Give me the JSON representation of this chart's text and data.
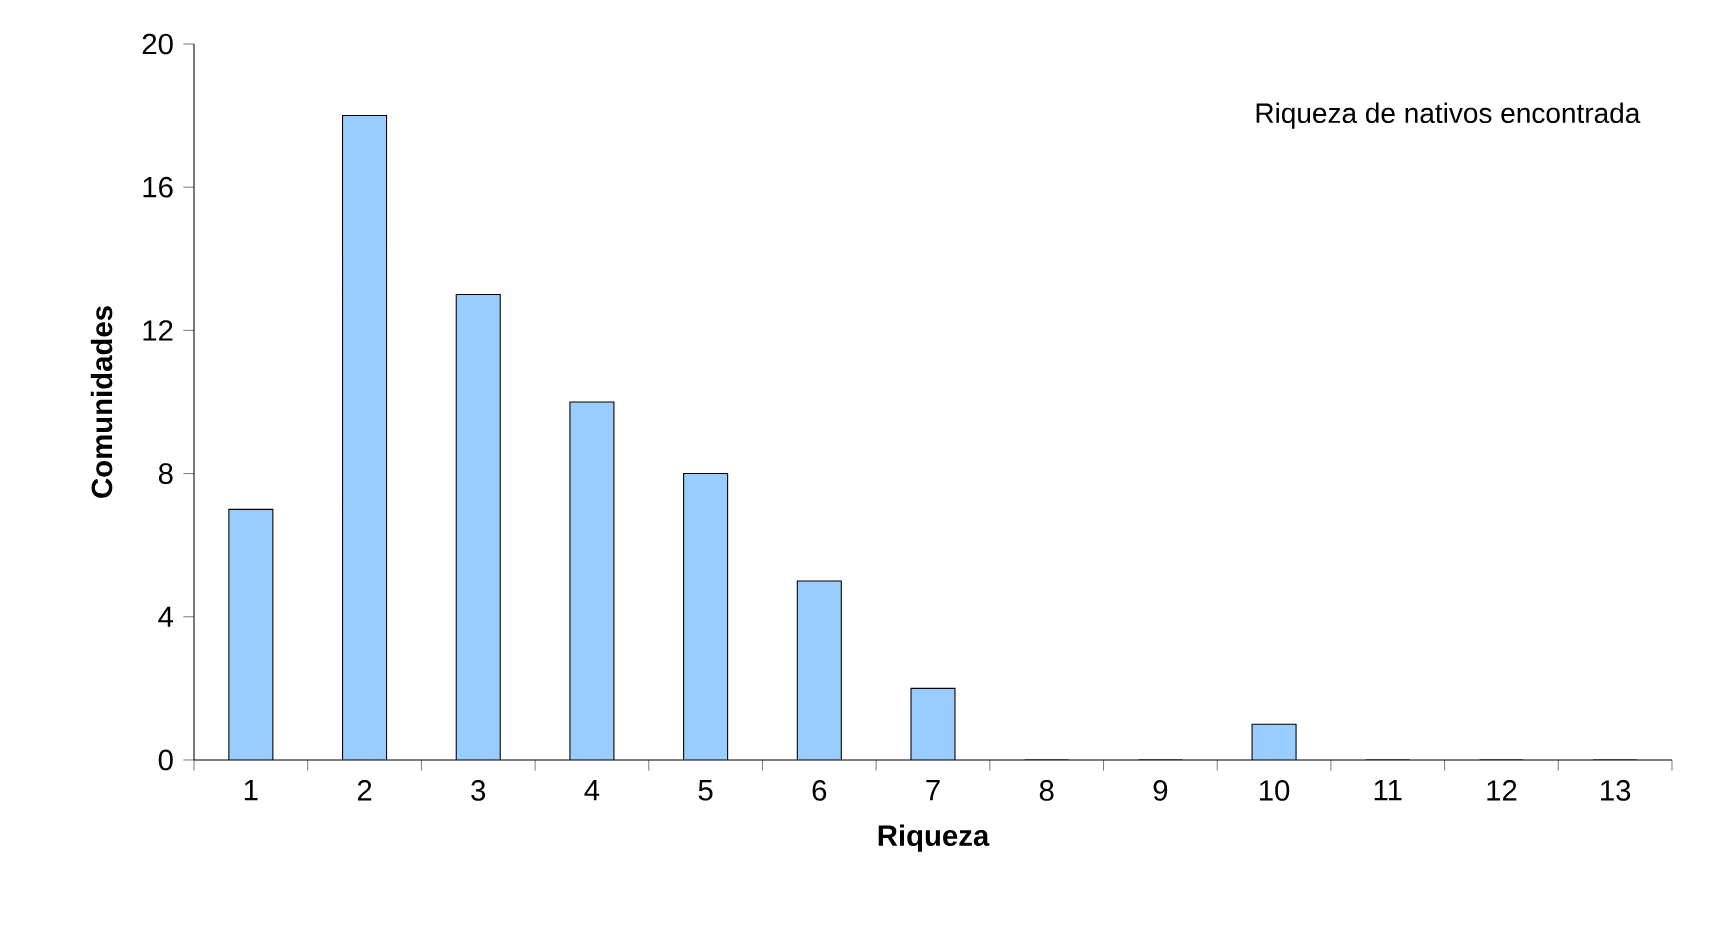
{
  "chart_data": {
    "type": "bar",
    "xlabel": "Riqueza",
    "ylabel": "Comunidades",
    "categories": [
      "1",
      "2",
      "3",
      "4",
      "5",
      "6",
      "7",
      "8",
      "9",
      "10",
      "11",
      "12",
      "13"
    ],
    "values": [
      7,
      18,
      13,
      10,
      8,
      5,
      2,
      0,
      0,
      1,
      0,
      0,
      0
    ],
    "color": "#99ccff",
    "ylim": [
      0,
      20
    ],
    "yticks": [
      0,
      4,
      8,
      12,
      16,
      20
    ],
    "annotations": [
      "Riqueza de nativos encontrada"
    ]
  }
}
